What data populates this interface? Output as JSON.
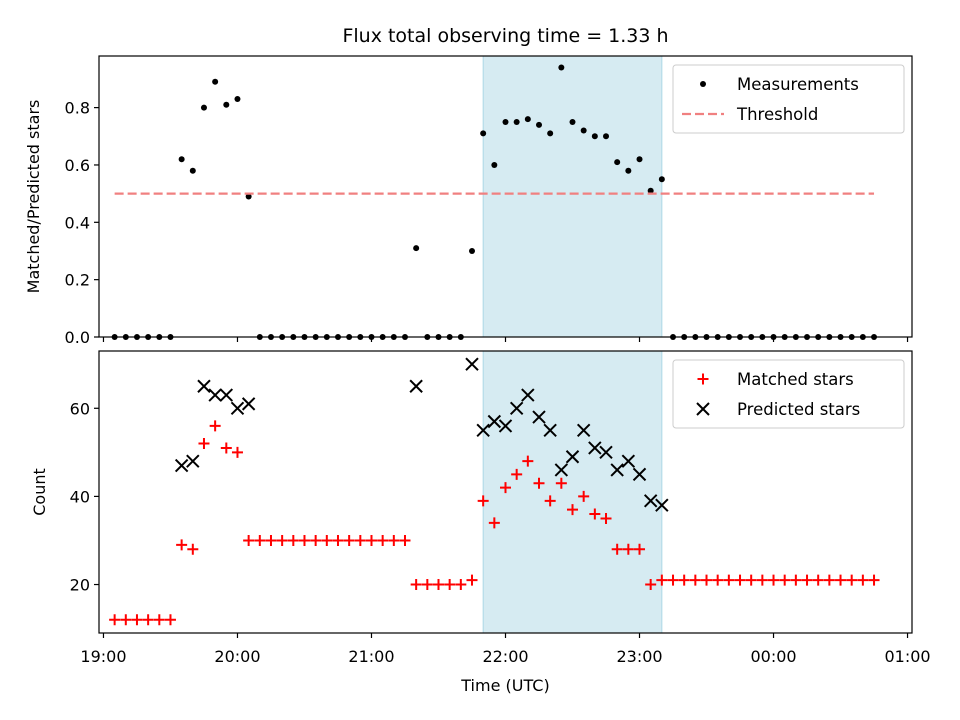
{
  "chart_data": {
    "title": "Flux total observing time = 1.33 h",
    "xlabel": "Time (UTC)",
    "x_ticks": [
      "19:00",
      "20:00",
      "21:00",
      "22:00",
      "23:00",
      "00:00",
      "01:00"
    ],
    "shaded_region": {
      "start": "21:50",
      "end": "23:10",
      "color": "#add8e6"
    },
    "panels": [
      {
        "type": "scatter",
        "ylabel": "Matched/Predicted stars",
        "ylim": [
          0,
          0.98
        ],
        "y_ticks": [
          "0.0",
          "0.2",
          "0.4",
          "0.6",
          "0.8"
        ],
        "legend_position": "top-right",
        "series": [
          {
            "name": "Measurements",
            "color": "#000000",
            "marker": "dot",
            "points": [
              [
                "19:05",
                0
              ],
              [
                "19:10",
                0
              ],
              [
                "19:15",
                0
              ],
              [
                "19:20",
                0
              ],
              [
                "19:25",
                0
              ],
              [
                "19:30",
                0
              ],
              [
                "19:35",
                0.62
              ],
              [
                "19:40",
                0.58
              ],
              [
                "19:45",
                0.8
              ],
              [
                "19:50",
                0.89
              ],
              [
                "19:55",
                0.81
              ],
              [
                "20:00",
                0.83
              ],
              [
                "20:05",
                0.49
              ],
              [
                "20:10",
                0
              ],
              [
                "20:15",
                0
              ],
              [
                "20:20",
                0
              ],
              [
                "20:25",
                0
              ],
              [
                "20:30",
                0
              ],
              [
                "20:35",
                0
              ],
              [
                "20:40",
                0
              ],
              [
                "20:45",
                0
              ],
              [
                "20:50",
                0
              ],
              [
                "20:55",
                0
              ],
              [
                "21:00",
                0
              ],
              [
                "21:05",
                0
              ],
              [
                "21:10",
                0
              ],
              [
                "21:15",
                0
              ],
              [
                "21:20",
                0.31
              ],
              [
                "21:25",
                0
              ],
              [
                "21:30",
                0
              ],
              [
                "21:35",
                0
              ],
              [
                "21:40",
                0
              ],
              [
                "21:45",
                0.3
              ],
              [
                "21:50",
                0.71
              ],
              [
                "21:55",
                0.6
              ],
              [
                "22:00",
                0.75
              ],
              [
                "22:05",
                0.75
              ],
              [
                "22:10",
                0.76
              ],
              [
                "22:15",
                0.74
              ],
              [
                "22:20",
                0.71
              ],
              [
                "22:25",
                0.94
              ],
              [
                "22:30",
                0.75
              ],
              [
                "22:35",
                0.72
              ],
              [
                "22:40",
                0.7
              ],
              [
                "22:45",
                0.7
              ],
              [
                "22:50",
                0.61
              ],
              [
                "22:55",
                0.58
              ],
              [
                "23:00",
                0.62
              ],
              [
                "23:05",
                0.51
              ],
              [
                "23:10",
                0.55
              ],
              [
                "23:15",
                0
              ],
              [
                "23:20",
                0
              ],
              [
                "23:25",
                0
              ],
              [
                "23:30",
                0
              ],
              [
                "23:35",
                0
              ],
              [
                "23:40",
                0
              ],
              [
                "23:45",
                0
              ],
              [
                "23:50",
                0
              ],
              [
                "23:55",
                0
              ],
              [
                "00:00",
                0
              ],
              [
                "00:05",
                0
              ],
              [
                "00:10",
                0
              ],
              [
                "00:15",
                0
              ],
              [
                "00:20",
                0
              ],
              [
                "00:25",
                0
              ],
              [
                "00:30",
                0
              ],
              [
                "00:35",
                0
              ],
              [
                "00:40",
                0
              ],
              [
                "00:45",
                0
              ]
            ]
          },
          {
            "name": "Threshold",
            "color": "#f08080",
            "style": "dashed",
            "points": [
              [
                "19:05",
                0.5
              ],
              [
                "00:45",
                0.5
              ]
            ]
          }
        ]
      },
      {
        "type": "scatter",
        "ylabel": "Count",
        "ylim": [
          9,
          73
        ],
        "y_ticks": [
          "20",
          "40",
          "60"
        ],
        "legend_position": "top-right",
        "series": [
          {
            "name": "Matched stars",
            "color": "#ff0000",
            "marker": "plus",
            "points": [
              [
                "19:05",
                12
              ],
              [
                "19:10",
                12
              ],
              [
                "19:15",
                12
              ],
              [
                "19:20",
                12
              ],
              [
                "19:25",
                12
              ],
              [
                "19:30",
                12
              ],
              [
                "19:35",
                29
              ],
              [
                "19:40",
                28
              ],
              [
                "19:45",
                52
              ],
              [
                "19:50",
                56
              ],
              [
                "19:55",
                51
              ],
              [
                "20:00",
                50
              ],
              [
                "20:05",
                30
              ],
              [
                "20:10",
                30
              ],
              [
                "20:15",
                30
              ],
              [
                "20:20",
                30
              ],
              [
                "20:25",
                30
              ],
              [
                "20:30",
                30
              ],
              [
                "20:35",
                30
              ],
              [
                "20:40",
                30
              ],
              [
                "20:45",
                30
              ],
              [
                "20:50",
                30
              ],
              [
                "20:55",
                30
              ],
              [
                "21:00",
                30
              ],
              [
                "21:05",
                30
              ],
              [
                "21:10",
                30
              ],
              [
                "21:15",
                30
              ],
              [
                "21:20",
                20
              ],
              [
                "21:25",
                20
              ],
              [
                "21:30",
                20
              ],
              [
                "21:35",
                20
              ],
              [
                "21:40",
                20
              ],
              [
                "21:45",
                21
              ],
              [
                "21:50",
                39
              ],
              [
                "21:55",
                34
              ],
              [
                "22:00",
                42
              ],
              [
                "22:05",
                45
              ],
              [
                "22:10",
                48
              ],
              [
                "22:15",
                43
              ],
              [
                "22:20",
                39
              ],
              [
                "22:25",
                43
              ],
              [
                "22:30",
                37
              ],
              [
                "22:35",
                40
              ],
              [
                "22:40",
                36
              ],
              [
                "22:45",
                35
              ],
              [
                "22:50",
                28
              ],
              [
                "22:55",
                28
              ],
              [
                "23:00",
                28
              ],
              [
                "23:05",
                20
              ],
              [
                "23:10",
                21
              ],
              [
                "23:15",
                21
              ],
              [
                "23:20",
                21
              ],
              [
                "23:25",
                21
              ],
              [
                "23:30",
                21
              ],
              [
                "23:35",
                21
              ],
              [
                "23:40",
                21
              ],
              [
                "23:45",
                21
              ],
              [
                "23:50",
                21
              ],
              [
                "23:55",
                21
              ],
              [
                "00:00",
                21
              ],
              [
                "00:05",
                21
              ],
              [
                "00:10",
                21
              ],
              [
                "00:15",
                21
              ],
              [
                "00:20",
                21
              ],
              [
                "00:25",
                21
              ],
              [
                "00:30",
                21
              ],
              [
                "00:35",
                21
              ],
              [
                "00:40",
                21
              ],
              [
                "00:45",
                21
              ]
            ]
          },
          {
            "name": "Predicted stars",
            "color": "#000000",
            "marker": "x",
            "points": [
              [
                "19:35",
                47
              ],
              [
                "19:40",
                48
              ],
              [
                "19:45",
                65
              ],
              [
                "19:50",
                63
              ],
              [
                "19:55",
                63
              ],
              [
                "20:00",
                60
              ],
              [
                "20:05",
                61
              ],
              [
                "21:20",
                65
              ],
              [
                "21:45",
                70
              ],
              [
                "21:50",
                55
              ],
              [
                "21:55",
                57
              ],
              [
                "22:00",
                56
              ],
              [
                "22:05",
                60
              ],
              [
                "22:10",
                63
              ],
              [
                "22:15",
                58
              ],
              [
                "22:20",
                55
              ],
              [
                "22:25",
                46
              ],
              [
                "22:30",
                49
              ],
              [
                "22:35",
                55
              ],
              [
                "22:40",
                51
              ],
              [
                "22:45",
                50
              ],
              [
                "22:50",
                46
              ],
              [
                "22:55",
                48
              ],
              [
                "23:00",
                45
              ],
              [
                "23:05",
                39
              ],
              [
                "23:10",
                38
              ]
            ]
          }
        ]
      }
    ]
  }
}
